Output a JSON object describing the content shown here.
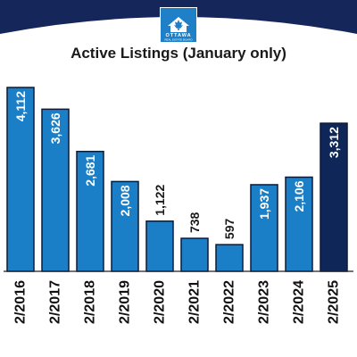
{
  "logo": {
    "icon": "maple-leaf-house-icon",
    "name": "OTTAWA",
    "subtitle": "REAL ESTATE BOARD"
  },
  "colors": {
    "band": "#15265b",
    "bar": "#1a7fc7",
    "bar_highlight": "#0e2658",
    "bar_border": "#0b1a3a",
    "axis": "#222222"
  },
  "chart_data": {
    "type": "bar",
    "title": "Active Listings (January only)",
    "categories": [
      "2/2016",
      "2/2017",
      "2/2018",
      "2/2019",
      "2/2020",
      "2/2021",
      "2/2022",
      "2/2023",
      "2/2024",
      "2/2025"
    ],
    "values": [
      4112,
      3626,
      2681,
      2008,
      1122,
      738,
      597,
      1937,
      2106,
      3312
    ],
    "labels": [
      "4,112",
      "3,626",
      "2,681",
      "2,008",
      "1,122",
      "738",
      "597",
      "1,937",
      "2,106",
      "3,312"
    ],
    "highlight_index": 9,
    "xlabel": "",
    "ylabel": "",
    "ylim": [
      0,
      4112
    ],
    "grid": false,
    "legend": "none"
  }
}
